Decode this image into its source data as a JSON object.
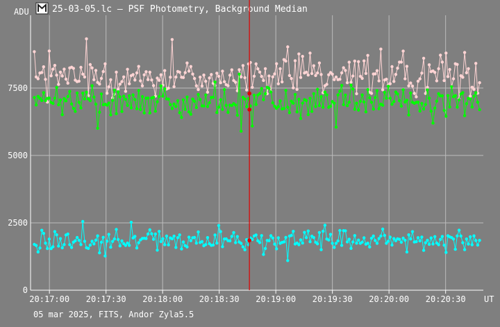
{
  "window": {
    "title": "25-03-05.lc – PSF Photometry, Background Median",
    "app_icon": "app-logo-icon"
  },
  "footer": {
    "info": "05 mar 2025, FITS, Andor Zyla5.5"
  },
  "colors": {
    "background": "#7f7f7f",
    "grid": "#bdbdbd",
    "axis": "#ffffff",
    "text": "#ffffff",
    "cursor": "#e00000",
    "series_pink": "#ffd4d4",
    "series_green": "#00ff00",
    "series_cyan": "#00ffff"
  },
  "chart_data": {
    "type": "line",
    "title": "25-03-05.lc – PSF Photometry, Background Median",
    "ylabel": "ADU",
    "xlabel": "UT",
    "ylim": [
      0,
      10200
    ],
    "y_ticks": [
      0,
      2500,
      5000,
      7500
    ],
    "y_tick_labels": [
      "0",
      "2500",
      "5000",
      "7500"
    ],
    "x_range": [
      "20:16:50",
      "20:20:50"
    ],
    "x_ticks": [
      "20:17:00",
      "20:17:30",
      "20:18:00",
      "20:18:30",
      "20:19:00",
      "20:19:30",
      "20:20:00",
      "20:20:30"
    ],
    "grid": true,
    "cursor_time": "20:18:46",
    "cursor_markers": [
      {
        "series": "pink",
        "value": 7300
      },
      {
        "series": "green",
        "value": 6700
      },
      {
        "series": "cyan",
        "value": 1850
      }
    ],
    "series": [
      {
        "key": "pink",
        "color": "#ffd4d4",
        "mean": 7900,
        "noise": 420,
        "n": 240,
        "sample_points": [
          [
            "20:16:52",
            8850
          ],
          [
            "20:17:30",
            8400
          ],
          [
            "20:18:05",
            9300
          ],
          [
            "20:18:40",
            7400
          ],
          [
            "20:19:05",
            8500
          ],
          [
            "20:20:30",
            8800
          ],
          [
            "20:20:48",
            7700
          ]
        ]
      },
      {
        "key": "green",
        "color": "#00ff00",
        "mean": 7000,
        "noise": 320,
        "n": 240,
        "sample_points": [
          [
            "20:16:52",
            7150
          ],
          [
            "20:17:30",
            6900
          ],
          [
            "20:18:00",
            7200
          ],
          [
            "20:18:42",
            5900
          ],
          [
            "20:19:30",
            7000
          ],
          [
            "20:20:10",
            6500
          ],
          [
            "20:20:48",
            6700
          ]
        ]
      },
      {
        "key": "cyan",
        "color": "#00ffff",
        "mean": 1850,
        "noise": 230,
        "n": 240,
        "sample_points": [
          [
            "20:16:52",
            1700
          ],
          [
            "20:17:18",
            2550
          ],
          [
            "20:17:45",
            2000
          ],
          [
            "20:18:30",
            2400
          ],
          [
            "20:19:06",
            1100
          ],
          [
            "20:19:40",
            1550
          ],
          [
            "20:20:30",
            1400
          ],
          [
            "20:20:48",
            1850
          ]
        ]
      }
    ]
  }
}
